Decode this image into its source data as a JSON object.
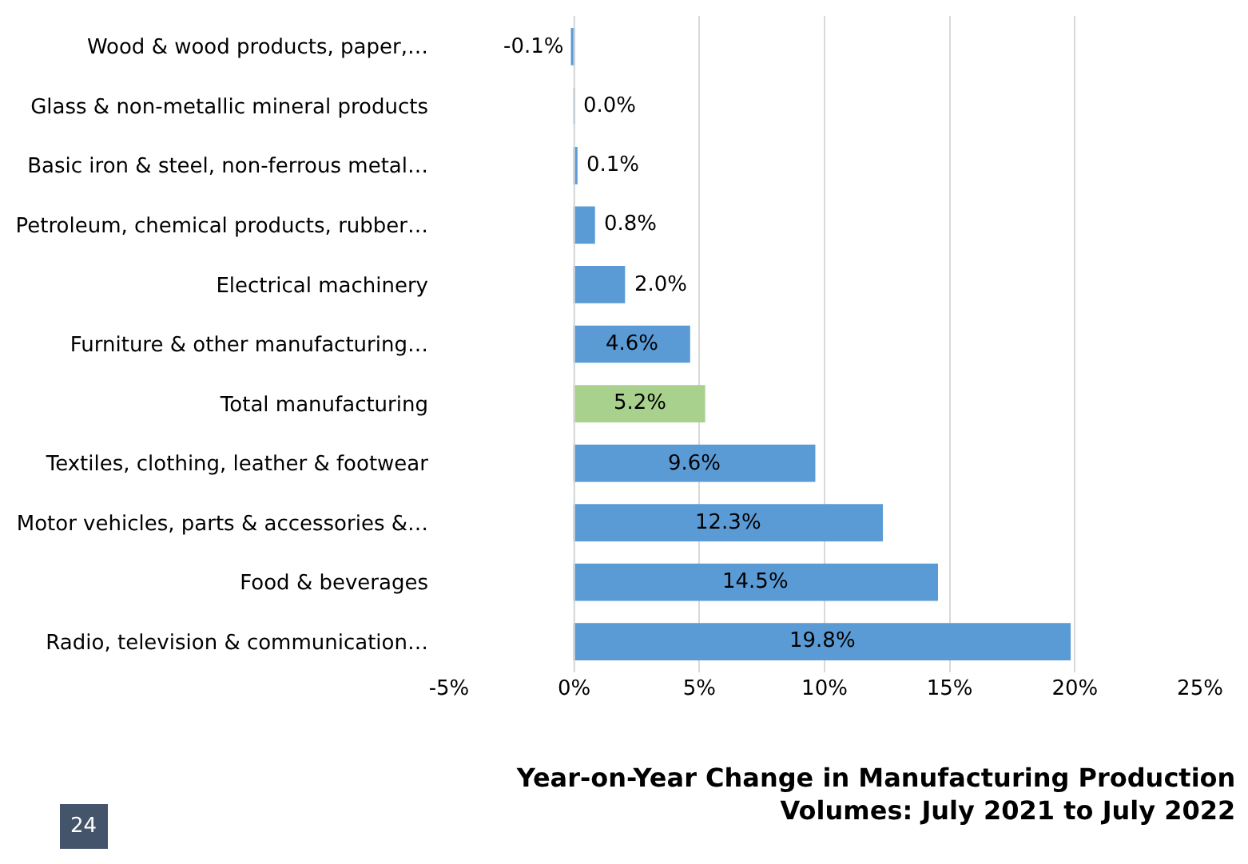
{
  "chart_data": {
    "type": "bar",
    "orientation": "horizontal",
    "title": "Year-on-Year Change in Manufacturing Production Volumes: July 2021 to July 2022",
    "categories": [
      "Wood & wood products, paper,…",
      "Glass & non-metallic mineral products",
      "Basic iron & steel, non-ferrous metal…",
      "Petroleum, chemical products, rubber…",
      "Electrical machinery",
      "Furniture & other manufacturing…",
      "Total manufacturing",
      "Textiles, clothing, leather & footwear",
      "Motor vehicles, parts & accessories &…",
      "Food & beverages",
      "Radio, television & communication…"
    ],
    "values": [
      -0.1,
      0.0,
      0.1,
      0.8,
      2.0,
      4.6,
      5.2,
      9.6,
      12.3,
      14.5,
      19.8
    ],
    "value_labels": [
      "-0.1%",
      "0.0%",
      "0.1%",
      "0.8%",
      "2.0%",
      "4.6%",
      "5.2%",
      "9.6%",
      "12.3%",
      "14.5%",
      "19.8%"
    ],
    "colors": [
      "#5b9bd5",
      "#5b9bd5",
      "#5b9bd5",
      "#5b9bd5",
      "#5b9bd5",
      "#5b9bd5",
      "#a9d18e",
      "#5b9bd5",
      "#5b9bd5",
      "#5b9bd5",
      "#5b9bd5"
    ],
    "xlim": [
      -5,
      25
    ],
    "xticks": [
      {
        "value": -5,
        "label": "-5%"
      },
      {
        "value": 0,
        "label": "0%"
      },
      {
        "value": 5,
        "label": "5%"
      },
      {
        "value": 10,
        "label": "10%"
      },
      {
        "value": 15,
        "label": "15%"
      },
      {
        "value": 20,
        "label": "20%"
      },
      {
        "value": 25,
        "label": "25%"
      }
    ],
    "grid": "x",
    "legend": false,
    "annotations": [
      "24"
    ]
  }
}
